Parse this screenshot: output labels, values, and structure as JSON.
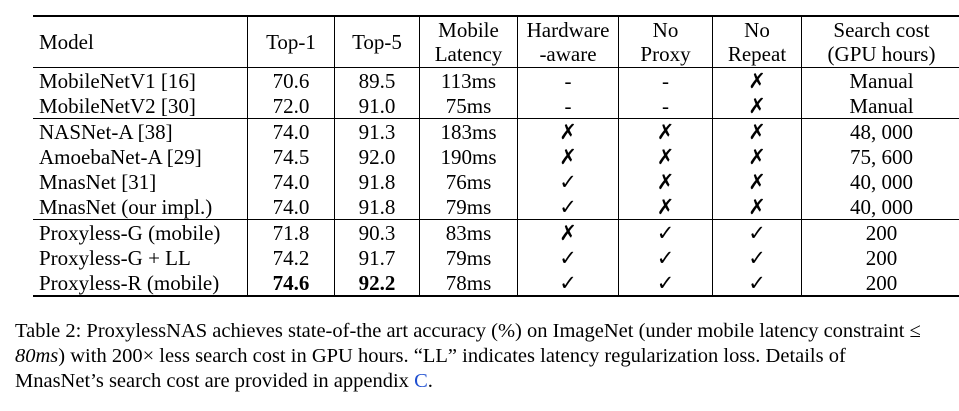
{
  "table": {
    "headers": {
      "model": "Model",
      "top1": "Top-1",
      "top5": "Top-5",
      "latency_l1": "Mobile",
      "latency_l2": "Latency",
      "hw_l1": "Hardware",
      "hw_l2": "-aware",
      "proxy_l1": "No",
      "proxy_l2": "Proxy",
      "repeat_l1": "No",
      "repeat_l2": "Repeat",
      "cost_l1": "Search cost",
      "cost_l2": "(GPU hours)"
    },
    "groups": [
      [
        {
          "model": "MobileNetV1 [16]",
          "top1": "70.6",
          "top5": "89.5",
          "latency": "113ms",
          "hw": "-",
          "proxy": "-",
          "repeat": "✗",
          "cost": "Manual"
        },
        {
          "model": "MobileNetV2 [30]",
          "top1": "72.0",
          "top5": "91.0",
          "latency": "75ms",
          "hw": "-",
          "proxy": "-",
          "repeat": "✗",
          "cost": "Manual"
        }
      ],
      [
        {
          "model": "NASNet-A [38]",
          "top1": "74.0",
          "top5": "91.3",
          "latency": "183ms",
          "hw": "✗",
          "proxy": "✗",
          "repeat": "✗",
          "cost": "48, 000"
        },
        {
          "model": "AmoebaNet-A [29]",
          "top1": "74.5",
          "top5": "92.0",
          "latency": "190ms",
          "hw": "✗",
          "proxy": "✗",
          "repeat": "✗",
          "cost": "75, 600"
        },
        {
          "model": "MnasNet [31]",
          "top1": "74.0",
          "top5": "91.8",
          "latency": "76ms",
          "hw": "✓",
          "proxy": "✗",
          "repeat": "✗",
          "cost": "40, 000"
        },
        {
          "model": "MnasNet (our impl.)",
          "top1": "74.0",
          "top5": "91.8",
          "latency": "79ms",
          "hw": "✓",
          "proxy": "✗",
          "repeat": "✗",
          "cost": "40, 000"
        }
      ],
      [
        {
          "model": "Proxyless-G (mobile)",
          "top1": "71.8",
          "top5": "90.3",
          "latency": "83ms",
          "hw": "✗",
          "proxy": "✓",
          "repeat": "✓",
          "cost": "200"
        },
        {
          "model": "Proxyless-G + LL",
          "top1": "74.2",
          "top5": "91.7",
          "latency": "79ms",
          "hw": "✓",
          "proxy": "✓",
          "repeat": "✓",
          "cost": "200"
        },
        {
          "model": "Proxyless-R (mobile)",
          "top1": "74.6",
          "top5": "92.2",
          "latency": "78ms",
          "hw": "✓",
          "proxy": "✓",
          "repeat": "✓",
          "cost": "200",
          "bold": [
            "top1",
            "top5"
          ]
        }
      ]
    ]
  },
  "caption": {
    "part1": "Table 2: ProxylessNAS achieves state-of-the art accuracy (%) on ImageNet (under mobile latency constraint ≤ ",
    "math1": "80ms",
    "part2": ") with 200× less search cost in GPU hours. “LL” indicates latency regularization loss. Details of MnasNet’s search cost are provided in appendix ",
    "ref": "C",
    "part3": "."
  }
}
